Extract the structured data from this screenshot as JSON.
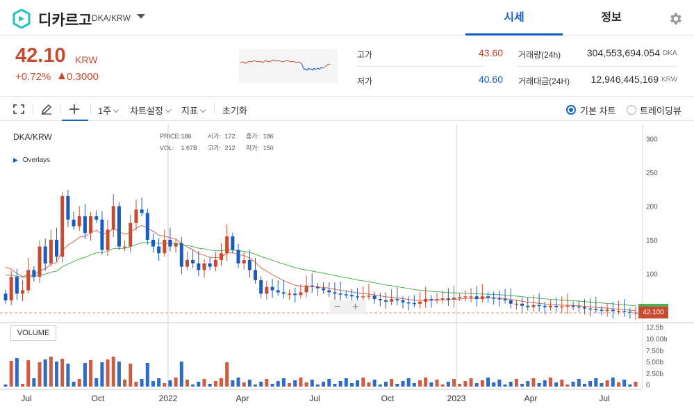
{
  "header": {
    "coin_name": "디카르고",
    "coin_pair": "DKA/KRW",
    "tabs": [
      "시세",
      "정보"
    ]
  },
  "summary": {
    "price": "42.10",
    "unit": "KRW",
    "change_pct": "+0.72%",
    "change_amt": "0.3000",
    "high_label": "고가",
    "high": "43.60",
    "low_label": "저가",
    "low": "40.60",
    "vol_label": "거래량(24h)",
    "vol": "304,553,694.054",
    "vol_unit": "DKA",
    "amt_label": "거래대금(24H)",
    "amt": "12,946,445,169",
    "amt_unit": "KRW"
  },
  "toolbar": {
    "interval": "1주",
    "chart_settings": "차트설정",
    "indicators": "지표",
    "reset": "초기화",
    "basic_chart": "기본 차트",
    "trading_view": "트레이딩뷰"
  },
  "chart": {
    "pair": "DKA/KRW",
    "ohlc": {
      "price_lbl": "PRICE:",
      "price": "186",
      "open_lbl": "시가:",
      "open": "172",
      "close_lbl": "종가:",
      "close": "186",
      "vol_lbl": "VOL:",
      "vol": "1.67B",
      "high_lbl": "고가:",
      "high": "212",
      "low_lbl": "저가:",
      "low": "150"
    },
    "overlays": "Overlays",
    "volume_label": "VOLUME",
    "last_price_tag": "42.100",
    "colors": {
      "up": "#c84a31",
      "down": "#1a5bbf",
      "ma_short": "#e06650",
      "ma_long": "#4cb050"
    }
  },
  "chart_data": {
    "type": "candlestick",
    "y_ticks": [
      "300",
      "250",
      "200",
      "150",
      "100"
    ],
    "vol_ticks": [
      "12.5b",
      "10.00b",
      "7.50b",
      "5.00b",
      "2.50b",
      "0"
    ],
    "x_ticks": [
      "Jul",
      "Oct",
      "2022",
      "Apr",
      "Jul",
      "Oct",
      "2023",
      "Apr",
      "Jul"
    ],
    "ylim": [
      40,
      320
    ]
  }
}
